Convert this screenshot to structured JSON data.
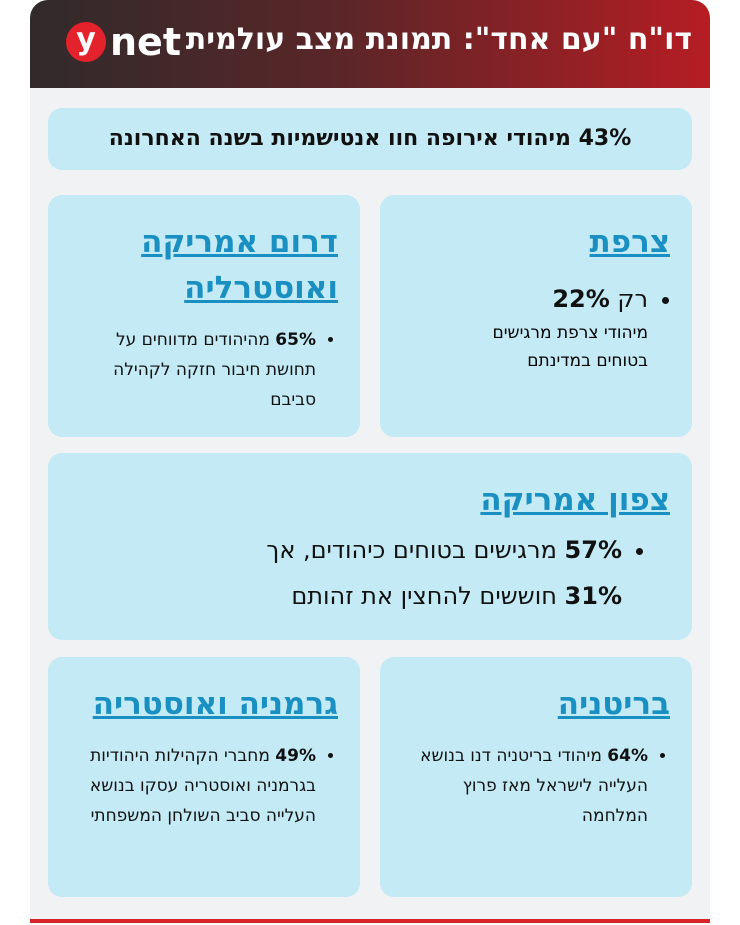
{
  "header": {
    "title": "דו\"ח \"עם אחד\": תמונת מצב עולמית",
    "logo_y": "y",
    "logo_net": "net"
  },
  "banner": "43% מיהודי אירופה חוו אנטישמיות בשנה האחרונה",
  "cards": [
    {
      "title": "צרפת",
      "prefix": "רק",
      "highlight": "22%",
      "text": "מיהודי צרפת מרגישים בטוחים במדינתם"
    },
    {
      "title": "דרום אמריקה ואוסטרליה",
      "highlight": "65%",
      "text": "מהיהודים מדווחים על תחושת חיבור חזקה לקהילה סביבם"
    },
    {
      "title": "צפון אמריקה",
      "highlight": "57%",
      "text": "מרגישים בטוחים כיהודים, אך",
      "highlight2": "31%",
      "text2": "חוששים להחצין את זהותם"
    },
    {
      "title": "בריטניה",
      "highlight": "64%",
      "text": "מיהודי בריטניה דנו בנושא העלייה לישראל מאז פרוץ המלחמה"
    },
    {
      "title": "גרמניה ואוסטריה",
      "highlight": "49%",
      "text": "מחברי הקהילות היהודיות בגרמניה ואוסטריה עסקו בנושא העלייה סביב השולחן המשפחתי"
    }
  ]
}
